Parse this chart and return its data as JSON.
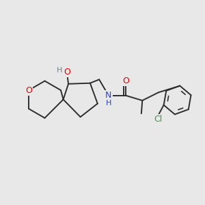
{
  "background_color": "#e8e8e8",
  "bond_color": "#2d2d2d",
  "atom_colors": {
    "O": "#dd0000",
    "N": "#2244cc",
    "Cl": "#38a030",
    "H_gray": "#708090",
    "H_blue": "#2244cc"
  },
  "figsize": [
    3.0,
    3.0
  ],
  "dpi": 100
}
